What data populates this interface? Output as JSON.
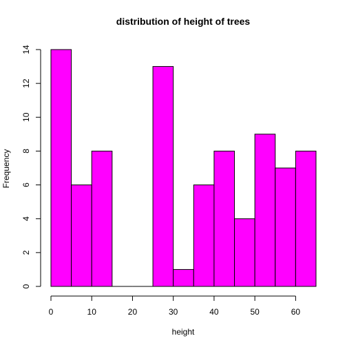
{
  "chart_data": {
    "type": "bar",
    "title": "distribution of height of trees",
    "xlabel": "height",
    "ylabel": "Frequency",
    "bins": [
      {
        "from": 0,
        "to": 5,
        "count": 14
      },
      {
        "from": 5,
        "to": 10,
        "count": 6
      },
      {
        "from": 10,
        "to": 15,
        "count": 8
      },
      {
        "from": 15,
        "to": 20,
        "count": 0
      },
      {
        "from": 20,
        "to": 25,
        "count": 0
      },
      {
        "from": 25,
        "to": 30,
        "count": 13
      },
      {
        "from": 30,
        "to": 35,
        "count": 1
      },
      {
        "from": 35,
        "to": 40,
        "count": 6
      },
      {
        "from": 40,
        "to": 45,
        "count": 8
      },
      {
        "from": 45,
        "to": 50,
        "count": 4
      },
      {
        "from": 50,
        "to": 55,
        "count": 9
      },
      {
        "from": 55,
        "to": 60,
        "count": 7
      },
      {
        "from": 60,
        "to": 65,
        "count": 8
      }
    ],
    "xlim": [
      0,
      65
    ],
    "ylim": [
      0,
      14
    ],
    "xticks": [
      0,
      10,
      20,
      30,
      40,
      50,
      60
    ],
    "yticks": [
      0,
      2,
      4,
      6,
      8,
      10,
      12,
      14
    ],
    "bar_color": "#ff00ff",
    "grid": false
  }
}
